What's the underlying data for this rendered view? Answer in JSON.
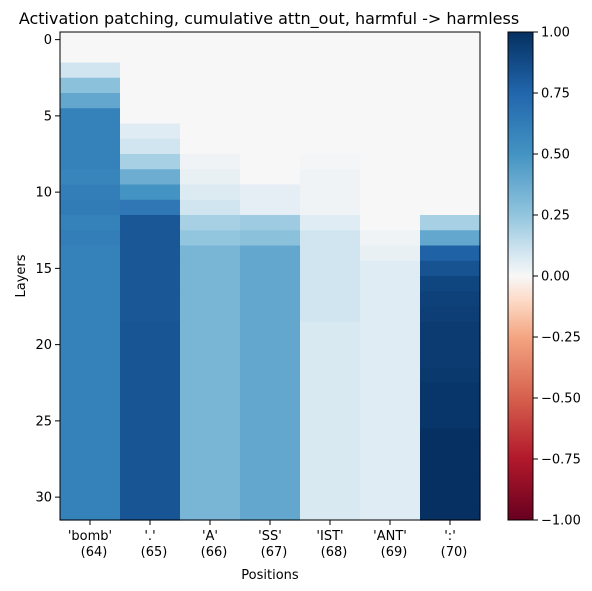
{
  "chart_data": {
    "type": "heatmap",
    "title": "Activation patching, cumulative attn_out, harmful -> harmless",
    "xlabel": "Positions",
    "ylabel": "Layers",
    "x_tick_labels": [
      [
        "'bomb'",
        "(64)"
      ],
      [
        "'.'",
        "(65)"
      ],
      [
        "'A'",
        "(66)"
      ],
      [
        "'SS'",
        "(67)"
      ],
      [
        "'IST'",
        "(68)"
      ],
      [
        "'ANT'",
        "(69)"
      ],
      [
        "':'",
        "(70)"
      ]
    ],
    "y_ticks": [
      0,
      5,
      10,
      15,
      20,
      25,
      30
    ],
    "layers": 32,
    "colormap": "RdBu",
    "vmin": -1.0,
    "vmax": 1.0,
    "colorbar_ticks": [
      "1.00",
      "0.75",
      "0.50",
      "0.25",
      "0.00",
      "−0.25",
      "−0.50",
      "−0.75",
      "−1.00"
    ],
    "colorbar_values": [
      1.0,
      0.75,
      0.5,
      0.25,
      0.0,
      -0.25,
      -0.5,
      -0.75,
      -1.0
    ],
    "columns": [
      [
        0,
        0,
        0.1,
        0.27,
        0.4,
        0.6,
        0.6,
        0.6,
        0.6,
        0.58,
        0.62,
        0.63,
        0.6,
        0.62,
        0.6,
        0.6,
        0.6,
        0.6,
        0.6,
        0.6,
        0.6,
        0.6,
        0.6,
        0.6,
        0.6,
        0.6,
        0.6,
        0.6,
        0.6,
        0.6,
        0.6,
        0.6
      ],
      [
        0,
        0,
        0,
        0,
        0,
        0,
        0.06,
        0.1,
        0.2,
        0.37,
        0.5,
        0.65,
        0.82,
        0.82,
        0.82,
        0.82,
        0.82,
        0.82,
        0.82,
        0.83,
        0.83,
        0.83,
        0.83,
        0.83,
        0.83,
        0.83,
        0.83,
        0.83,
        0.83,
        0.83,
        0.83,
        0.83
      ],
      [
        0,
        0,
        0,
        0,
        0,
        0,
        0,
        0,
        0.02,
        0.04,
        0.07,
        0.1,
        0.2,
        0.25,
        0.33,
        0.33,
        0.33,
        0.33,
        0.33,
        0.33,
        0.33,
        0.33,
        0.33,
        0.33,
        0.33,
        0.33,
        0.33,
        0.33,
        0.33,
        0.33,
        0.33,
        0.33
      ],
      [
        0,
        0,
        0,
        0,
        0,
        0,
        0,
        0,
        0,
        0,
        0.05,
        0.05,
        0.22,
        0.27,
        0.4,
        0.4,
        0.4,
        0.4,
        0.4,
        0.4,
        0.4,
        0.4,
        0.4,
        0.4,
        0.4,
        0.4,
        0.4,
        0.4,
        0.4,
        0.4,
        0.4,
        0.4
      ],
      [
        0,
        0,
        0,
        0,
        0,
        0,
        0,
        0,
        0.01,
        0.02,
        0.02,
        0.02,
        0.06,
        0.1,
        0.1,
        0.1,
        0.1,
        0.1,
        0.1,
        0.08,
        0.08,
        0.08,
        0.08,
        0.08,
        0.08,
        0.08,
        0.08,
        0.08,
        0.08,
        0.08,
        0.08,
        0.08
      ],
      [
        0,
        0,
        0,
        0,
        0,
        0,
        0,
        0,
        0,
        0,
        0,
        0,
        0,
        0.02,
        0.04,
        0.06,
        0.06,
        0.06,
        0.06,
        0.06,
        0.06,
        0.06,
        0.06,
        0.06,
        0.06,
        0.06,
        0.06,
        0.06,
        0.06,
        0.06,
        0.06,
        0.06
      ],
      [
        0,
        0,
        0,
        0,
        0,
        0,
        0,
        0,
        0,
        0,
        0,
        0,
        0.2,
        0.4,
        0.77,
        0.84,
        0.9,
        0.92,
        0.93,
        0.95,
        0.95,
        0.95,
        0.96,
        0.97,
        0.97,
        0.97,
        1,
        1,
        1,
        1,
        1,
        1
      ]
    ]
  }
}
